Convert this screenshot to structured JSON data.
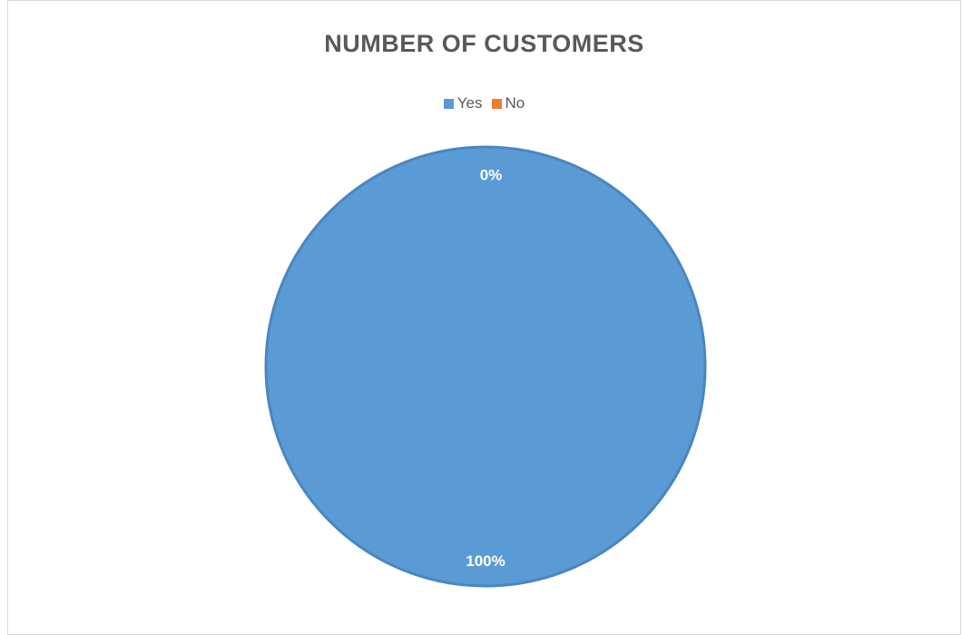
{
  "chart_data": {
    "type": "pie",
    "title": "NUMBER OF CUSTOMERS",
    "categories": [
      "Yes",
      "No"
    ],
    "values": [
      100,
      0
    ],
    "data_labels": [
      "100%",
      "0%"
    ],
    "colors": [
      "#5b9bd5",
      "#ed7d31"
    ],
    "legend_position": "top"
  }
}
